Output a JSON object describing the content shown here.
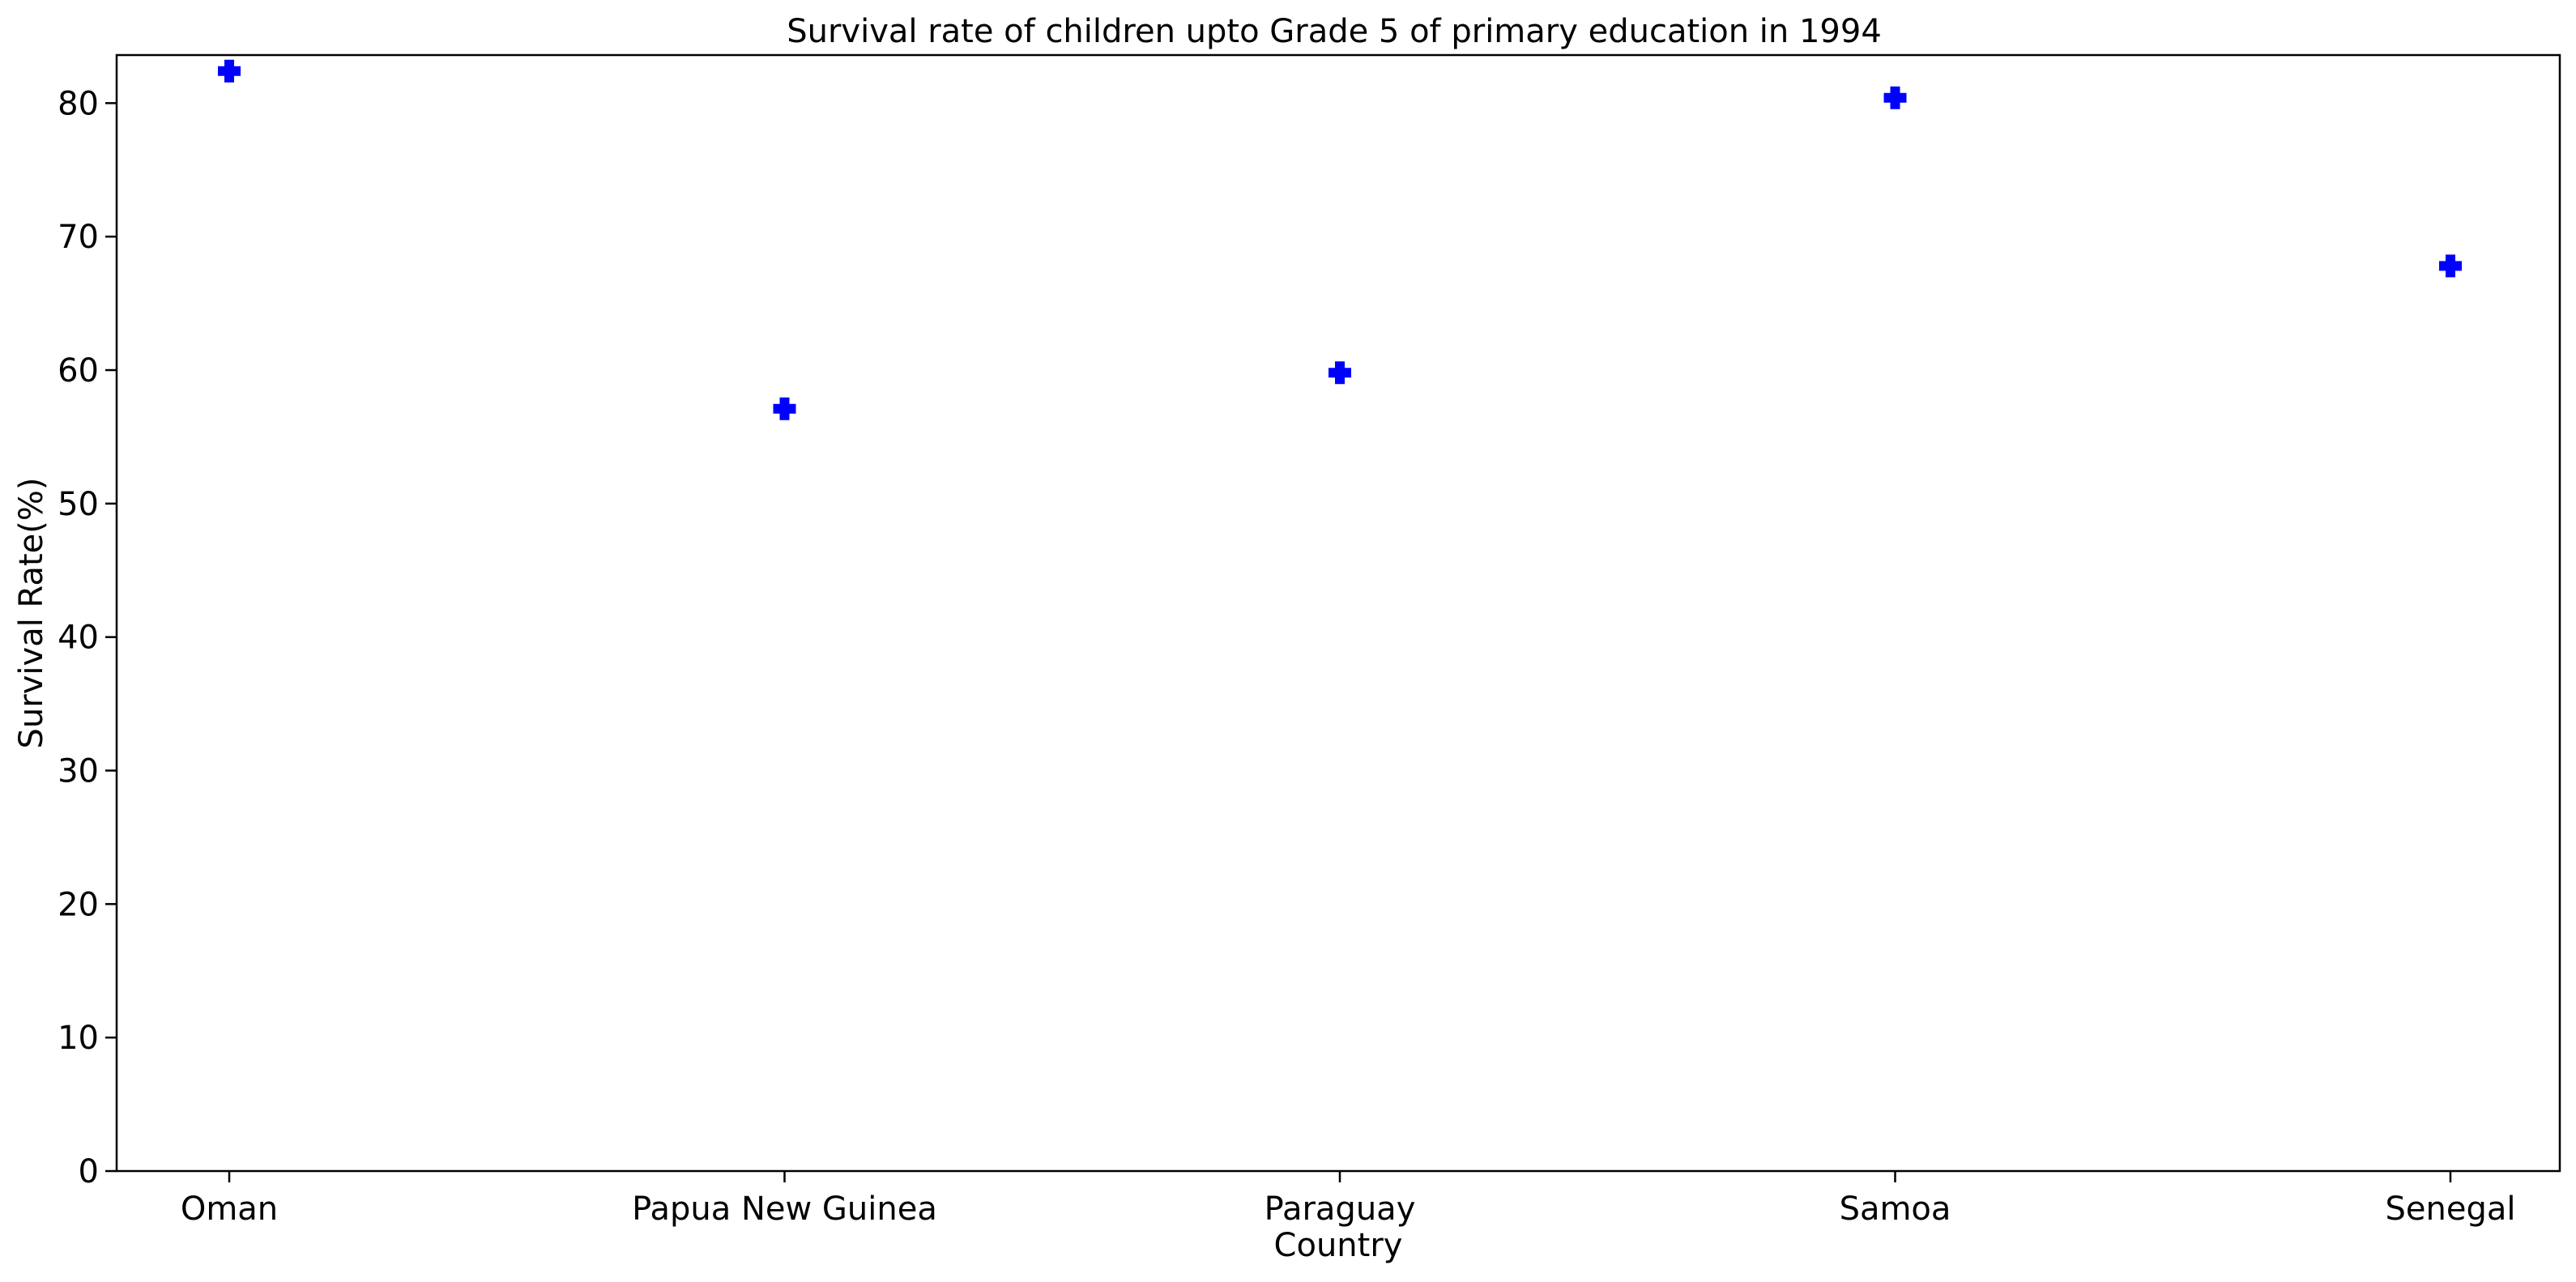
{
  "chart_data": {
    "type": "scatter",
    "title": "Survival rate of children upto Grade 5 of primary education in 1994",
    "xlabel": "Country",
    "ylabel": "Survival Rate(%)",
    "categories": [
      "Oman",
      "Papua New Guinea",
      "Paraguay",
      "Samoa",
      "Senegal"
    ],
    "series": [
      {
        "values": [
          82.4,
          57.1,
          59.8,
          80.4,
          67.8
        ],
        "color": "#0000ff",
        "marker": "plus-filled"
      }
    ],
    "ylim": [
      0,
      83.6
    ],
    "yticks": [
      0,
      10,
      20,
      30,
      40,
      50,
      60,
      70,
      80
    ],
    "grid": false,
    "legend": "none"
  }
}
